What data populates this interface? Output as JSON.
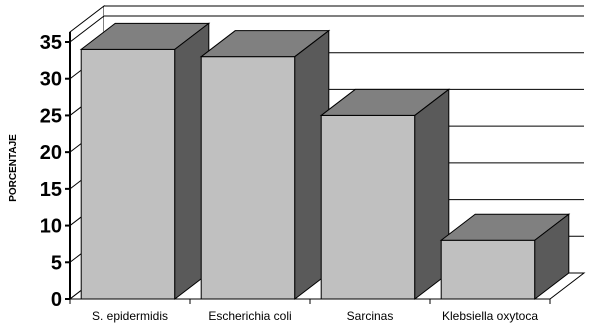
{
  "chart_data": {
    "type": "bar",
    "categories": [
      "S. epidermidis",
      "Escherichia coli",
      "Sarcinas",
      "Klebsiella oxytoca"
    ],
    "values": [
      34,
      33,
      25,
      8
    ],
    "title": "",
    "xlabel": "",
    "ylabel": "PORCENTAJE",
    "ylim": [
      0,
      35
    ],
    "yticks": [
      "0",
      "5",
      "10",
      "15",
      "20",
      "25",
      "30",
      "35"
    ],
    "grid": true,
    "style": "3d-bar",
    "colors": {
      "bar_front": "#c0c0c0",
      "bar_top": "#808080",
      "bar_side": "#5a5a5a",
      "floor": "#ffffff",
      "wall": "#ffffff",
      "line": "#000000"
    }
  }
}
